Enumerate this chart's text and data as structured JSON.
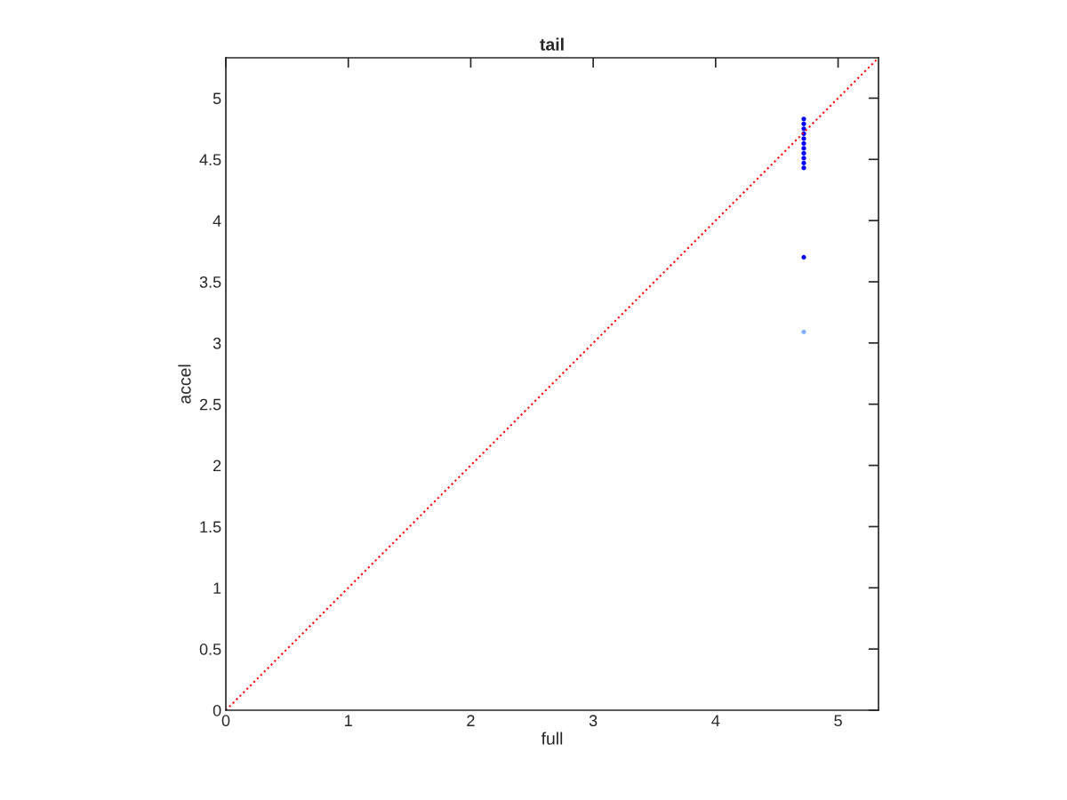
{
  "chart_data": {
    "type": "scatter",
    "title": "tail",
    "xlabel": "full",
    "ylabel": "accel",
    "xlim": [
      0,
      5.33
    ],
    "ylim": [
      0,
      5.33
    ],
    "xticks": [
      0,
      1,
      2,
      3,
      4,
      5
    ],
    "yticks": [
      0,
      {
        "value": 0.5,
        "label": "0.5"
      },
      1,
      {
        "value": 1.5,
        "label": "1.5"
      },
      2,
      {
        "value": 2.5,
        "label": "2.5"
      },
      3,
      {
        "value": 3.5,
        "label": "3.5"
      },
      4,
      {
        "value": 4.5,
        "label": "4.5"
      },
      5
    ],
    "grid": false,
    "series": [
      {
        "marker": "circle",
        "color": "#0000ff",
        "x": [
          4.72,
          4.72,
          4.72,
          4.72,
          4.72,
          4.72,
          4.72,
          4.72,
          4.72,
          4.72,
          4.72,
          4.72
        ],
        "values": [
          3.7,
          4.43,
          4.47,
          4.51,
          4.55,
          4.59,
          4.63,
          4.67,
          4.71,
          4.75,
          4.79,
          4.83
        ]
      },
      {
        "marker": "circle",
        "color": "#80b3ff",
        "x": [
          4.72
        ],
        "values": [
          3.09
        ]
      },
      {
        "type": "line",
        "color": "#ff0000",
        "line_style": "dotted",
        "x": [
          0,
          5.33
        ],
        "values": [
          0,
          5.33
        ]
      }
    ]
  }
}
